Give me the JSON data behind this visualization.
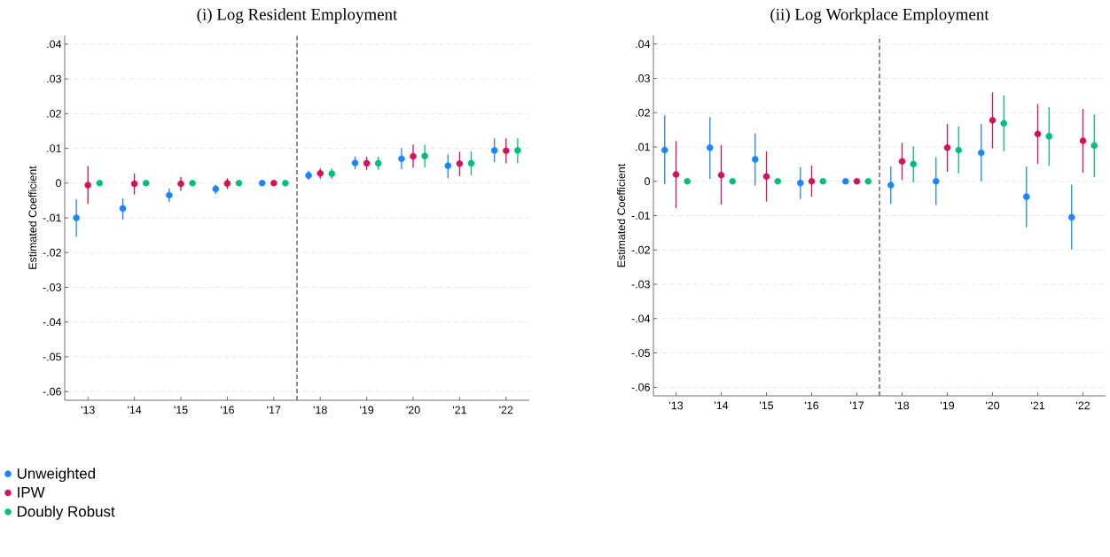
{
  "chart_data": [
    {
      "type": "scatter",
      "title": "(i) Log Resident Employment",
      "ylabel": "Estimated Coefficient",
      "marker": "circle",
      "grid": "y",
      "legend": "bottom left",
      "xlim": [
        2012.5,
        2022.5
      ],
      "ylim": [
        -0.0625,
        0.0425
      ],
      "xticks": [
        {
          "value": 2013,
          "label": "'13"
        },
        {
          "value": 2014,
          "label": "'14"
        },
        {
          "value": 2015,
          "label": "'15"
        },
        {
          "value": 2016,
          "label": "'16"
        },
        {
          "value": 2017,
          "label": "'17"
        },
        {
          "value": 2018,
          "label": "'18"
        },
        {
          "value": 2019,
          "label": "'19"
        },
        {
          "value": 2020,
          "label": "'20"
        },
        {
          "value": 2021,
          "label": "'21"
        },
        {
          "value": 2022,
          "label": "'22"
        }
      ],
      "yticks": [
        {
          "value": -0.06,
          "label": "-.06"
        },
        {
          "value": -0.05,
          "label": "-.05"
        },
        {
          "value": -0.04,
          "label": "-.04"
        },
        {
          "value": -0.03,
          "label": "-.03"
        },
        {
          "value": -0.02,
          "label": "-.02"
        },
        {
          "value": -0.01,
          "label": "-.01"
        },
        0,
        {
          "value": 0.01,
          "label": ".01"
        },
        {
          "value": 0.02,
          "label": ".02"
        },
        {
          "value": 0.03,
          "label": ".03"
        },
        {
          "value": 0.04,
          "label": ".04"
        }
      ],
      "ref_lines": [
        {
          "axis": "x",
          "value": 2017.5,
          "color": "#404040",
          "line_style": "dashed"
        }
      ],
      "series": [
        {
          "name": "Unweighted",
          "color": "#1a85ff",
          "x": [
            2012.75,
            2013.75,
            2014.75,
            2015.75,
            2016.75,
            2017.75,
            2018.75,
            2019.75,
            2020.75,
            2021.75
          ],
          "values": [
            -0.01,
            -0.0073,
            -0.0035,
            -0.0017,
            0,
            0.0022,
            0.0058,
            0.007,
            0.005,
            0.0094
          ],
          "errors": [
            [
              -0.0155,
              -0.0047
            ],
            [
              -0.0105,
              -0.0044
            ],
            [
              -0.0055,
              -0.0016
            ],
            [
              -0.0032,
              -0.0005
            ],
            null,
            [
              0.0009,
              0.0036
            ],
            [
              0.004,
              0.0077
            ],
            [
              0.004,
              0.0101
            ],
            [
              0.0015,
              0.0082
            ],
            [
              0.006,
              0.0129
            ]
          ]
        },
        {
          "name": "IPW",
          "color": "#d41159",
          "x": [
            2013,
            2014,
            2015,
            2016,
            2017,
            2018,
            2019,
            2020,
            2021,
            2022
          ],
          "values": [
            -0.0006,
            -0.0002,
            -0.0002,
            -0.0001,
            0,
            0.0028,
            0.0057,
            0.0077,
            0.0056,
            0.0093
          ],
          "errors": [
            [
              -0.006,
              0.0049
            ],
            [
              -0.0033,
              0.0028
            ],
            [
              -0.0022,
              0.0018
            ],
            [
              -0.0017,
              0.0014
            ],
            null,
            [
              0.0013,
              0.0042
            ],
            [
              0.0038,
              0.0076
            ],
            [
              0.0044,
              0.0111
            ],
            [
              0.002,
              0.009
            ],
            [
              0.0057,
              0.0129
            ]
          ]
        },
        {
          "name": "Doubly Robust",
          "color": "#00bf7f",
          "x": [
            2013.25,
            2014.25,
            2015.25,
            2016.25,
            2017.25,
            2018.25,
            2019.25,
            2020.25,
            2021.25,
            2022.25
          ],
          "values": [
            0,
            0,
            0,
            0,
            0,
            0.0027,
            0.0057,
            0.0078,
            0.0057,
            0.0094
          ],
          "errors": [
            null,
            null,
            null,
            null,
            null,
            [
              0.0012,
              0.0042
            ],
            [
              0.0038,
              0.0076
            ],
            [
              0.0045,
              0.0111
            ],
            [
              0.0022,
              0.0091
            ],
            [
              0.0057,
              0.0129
            ]
          ]
        }
      ]
    },
    {
      "type": "scatter",
      "title": "(ii) Log Workplace Employment",
      "ylabel": "Estimated Coefficient",
      "marker": "circle",
      "grid": "y",
      "xlim": [
        2012.5,
        2022.5
      ],
      "ylim": [
        -0.0625,
        0.0425
      ],
      "xticks": [
        {
          "value": 2013,
          "label": "'13"
        },
        {
          "value": 2014,
          "label": "'14"
        },
        {
          "value": 2015,
          "label": "'15"
        },
        {
          "value": 2016,
          "label": "'16"
        },
        {
          "value": 2017,
          "label": "'17"
        },
        {
          "value": 2018,
          "label": "'18"
        },
        {
          "value": 2019,
          "label": "'19"
        },
        {
          "value": 2020,
          "label": "'20"
        },
        {
          "value": 2021,
          "label": "'21"
        },
        {
          "value": 2022,
          "label": "'22"
        }
      ],
      "yticks": [
        {
          "value": -0.06,
          "label": "-.06"
        },
        {
          "value": -0.05,
          "label": "-.05"
        },
        {
          "value": -0.04,
          "label": "-.04"
        },
        {
          "value": -0.03,
          "label": "-.03"
        },
        {
          "value": -0.02,
          "label": "-.02"
        },
        {
          "value": -0.01,
          "label": "-.01"
        },
        0,
        {
          "value": 0.01,
          "label": ".01"
        },
        {
          "value": 0.02,
          "label": ".02"
        },
        {
          "value": 0.03,
          "label": ".03"
        },
        {
          "value": 0.04,
          "label": ".04"
        }
      ],
      "ref_lines": [
        {
          "axis": "x",
          "value": 2017.5,
          "color": "#404040",
          "line_style": "dashed"
        }
      ],
      "series": [
        {
          "color": "#1a85ff",
          "x": [
            2012.75,
            2013.75,
            2014.75,
            2015.75,
            2016.75,
            2017.75,
            2018.75,
            2019.75,
            2020.75,
            2021.75
          ],
          "values": [
            0.0091,
            0.0098,
            0.0064,
            -0.0005,
            0,
            -0.0011,
            0,
            0.0083,
            -0.0045,
            -0.0105
          ],
          "errors": [
            [
              -0.0009,
              0.0192
            ],
            [
              0.0007,
              0.0187
            ],
            [
              -0.0012,
              0.0139
            ],
            [
              -0.0052,
              0.0041
            ],
            null,
            [
              -0.0066,
              0.0044
            ],
            [
              -0.007,
              0.007
            ],
            [
              0,
              0.0167
            ],
            [
              -0.0134,
              0.0043
            ],
            [
              -0.0199,
              -0.001
            ]
          ]
        },
        {
          "color": "#d41159",
          "x": [
            2013,
            2014,
            2015,
            2016,
            2017,
            2018,
            2019,
            2020,
            2021,
            2022
          ],
          "values": [
            0.002,
            0.0018,
            0.0014,
            0,
            0,
            0.0058,
            0.0098,
            0.0178,
            0.0138,
            0.0118
          ],
          "errors": [
            [
              -0.0078,
              0.0117
            ],
            [
              -0.0068,
              0.0106
            ],
            [
              -0.0059,
              0.0087
            ],
            [
              -0.0045,
              0.0046
            ],
            null,
            [
              0.0004,
              0.0112
            ],
            [
              0.0028,
              0.0167
            ],
            [
              0.0096,
              0.0259
            ],
            [
              0.0051,
              0.0225
            ],
            [
              0.0025,
              0.0211
            ]
          ]
        },
        {
          "color": "#00bf7f",
          "x": [
            2013.25,
            2014.25,
            2015.25,
            2016.25,
            2017.25,
            2018.25,
            2019.25,
            2020.25,
            2021.25,
            2022.25
          ],
          "values": [
            0,
            0,
            0,
            0,
            0,
            0.005,
            0.0091,
            0.0169,
            0.0131,
            0.0104
          ],
          "errors": [
            null,
            null,
            null,
            null,
            null,
            [
              -0.0003,
              0.0102
            ],
            [
              0.0023,
              0.016
            ],
            [
              0.0088,
              0.025
            ],
            [
              0.0045,
              0.0216
            ],
            [
              0.0012,
              0.0195
            ]
          ]
        }
      ]
    }
  ]
}
